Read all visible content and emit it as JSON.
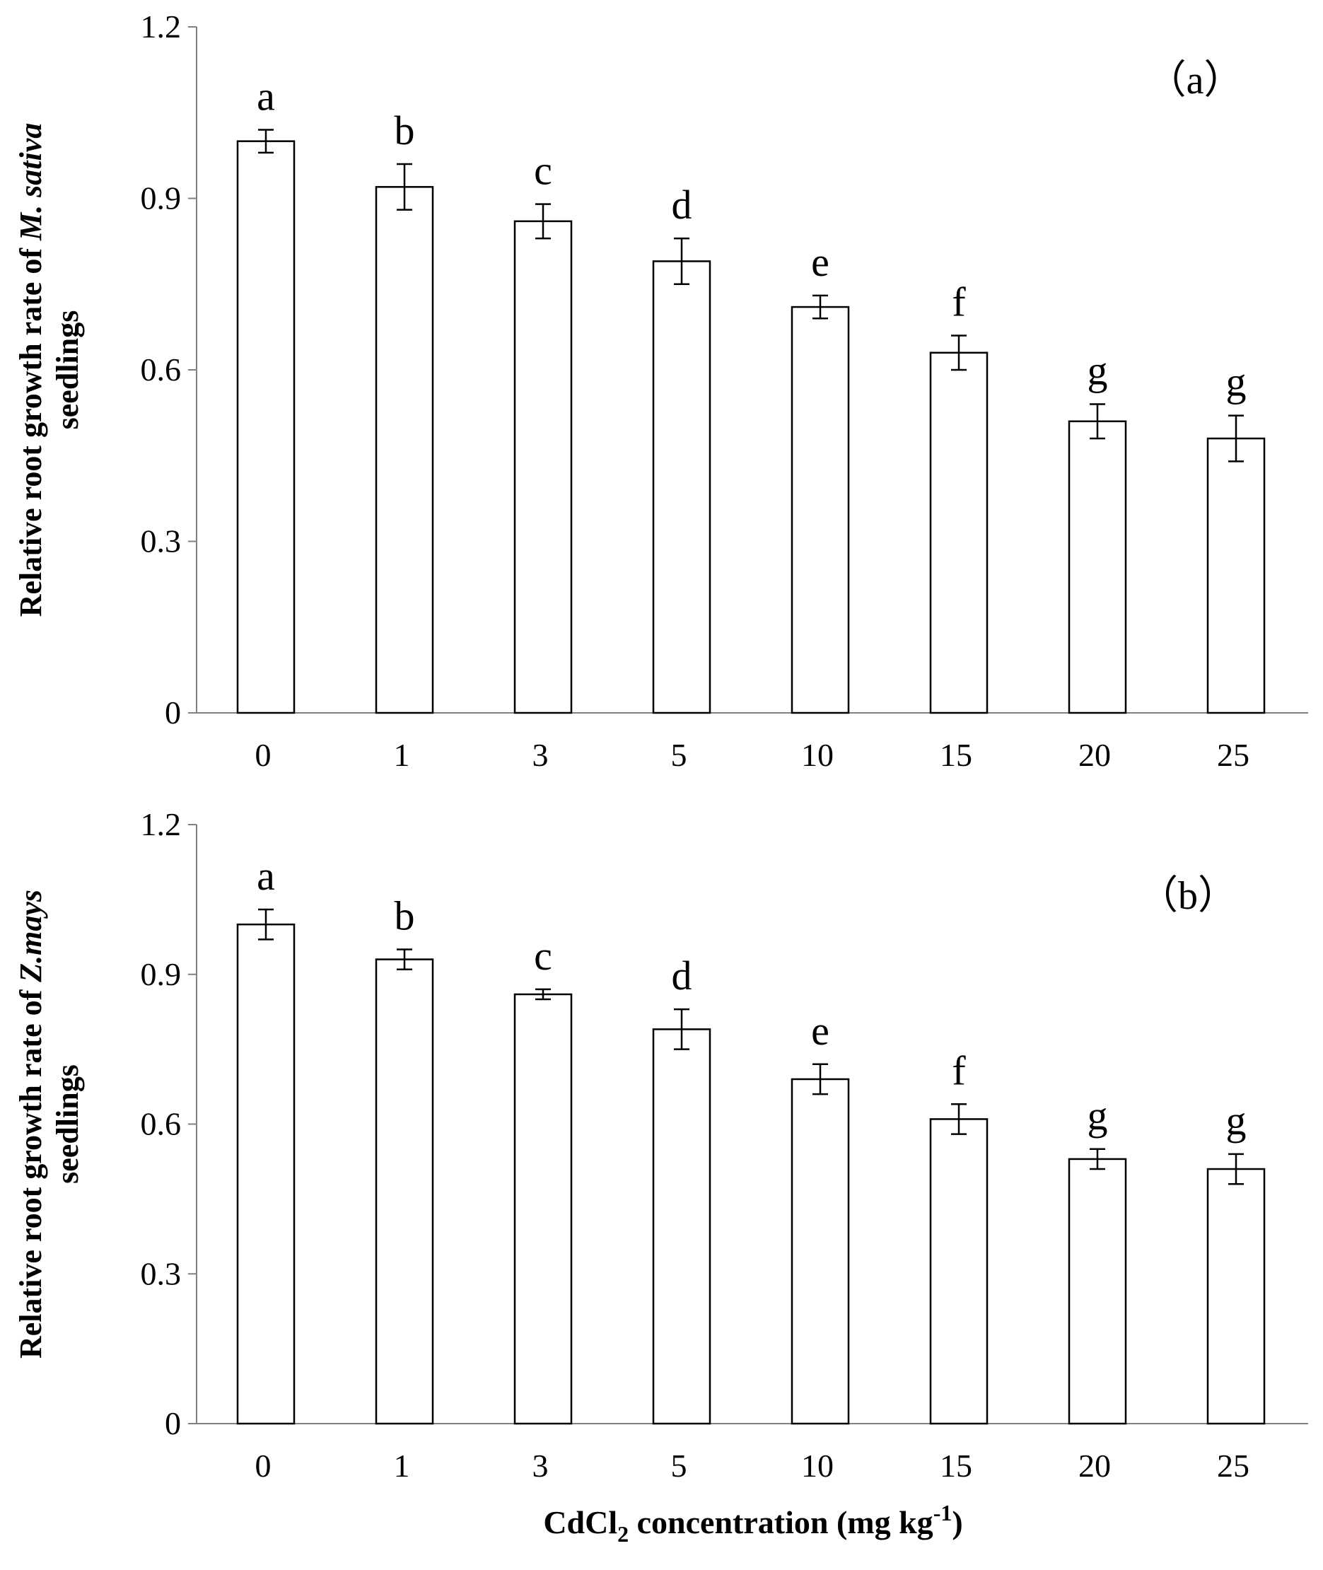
{
  "chart_data": [
    {
      "type": "bar",
      "panel_label": "（a）",
      "categories": [
        "0",
        "1",
        "3",
        "5",
        "10",
        "15",
        "20",
        "25"
      ],
      "values": [
        1.0,
        0.92,
        0.86,
        0.79,
        0.71,
        0.63,
        0.51,
        0.48
      ],
      "errors": [
        0.02,
        0.04,
        0.03,
        0.04,
        0.02,
        0.03,
        0.03,
        0.04
      ],
      "significance_letters": [
        "a",
        "b",
        "c",
        "d",
        "e",
        "f",
        "g",
        "g"
      ],
      "ylabel": {
        "line1_prefix": "Relative root growth rate of ",
        "line1_italic": "M. sativa",
        "line2": "seedlings"
      },
      "ylim": [
        0,
        1.2
      ],
      "yticks": [
        "0",
        "0.3",
        "0.6",
        "0.9",
        "1.2"
      ],
      "grid": false,
      "legend": "none"
    },
    {
      "type": "bar",
      "panel_label": "（b）",
      "categories": [
        "0",
        "1",
        "3",
        "5",
        "10",
        "15",
        "20",
        "25"
      ],
      "values": [
        1.0,
        0.93,
        0.86,
        0.79,
        0.69,
        0.61,
        0.53,
        0.51
      ],
      "errors": [
        0.03,
        0.02,
        0.01,
        0.04,
        0.03,
        0.03,
        0.02,
        0.03
      ],
      "significance_letters": [
        "a",
        "b",
        "c",
        "d",
        "e",
        "f",
        "g",
        "g"
      ],
      "ylabel": {
        "line1_prefix": "Relative root growth rate of ",
        "line1_italic": "Z.mays",
        "line2": "seedlings"
      },
      "ylim": [
        0,
        1.2
      ],
      "yticks": [
        "0",
        "0.3",
        "0.6",
        "0.9",
        "1.2"
      ],
      "grid": false,
      "legend": "none"
    }
  ],
  "xlabel": {
    "prefix": "CdCl",
    "subscript": "2",
    "middle": " concentration (mg kg",
    "superscript": "-1",
    "suffix": ")"
  }
}
